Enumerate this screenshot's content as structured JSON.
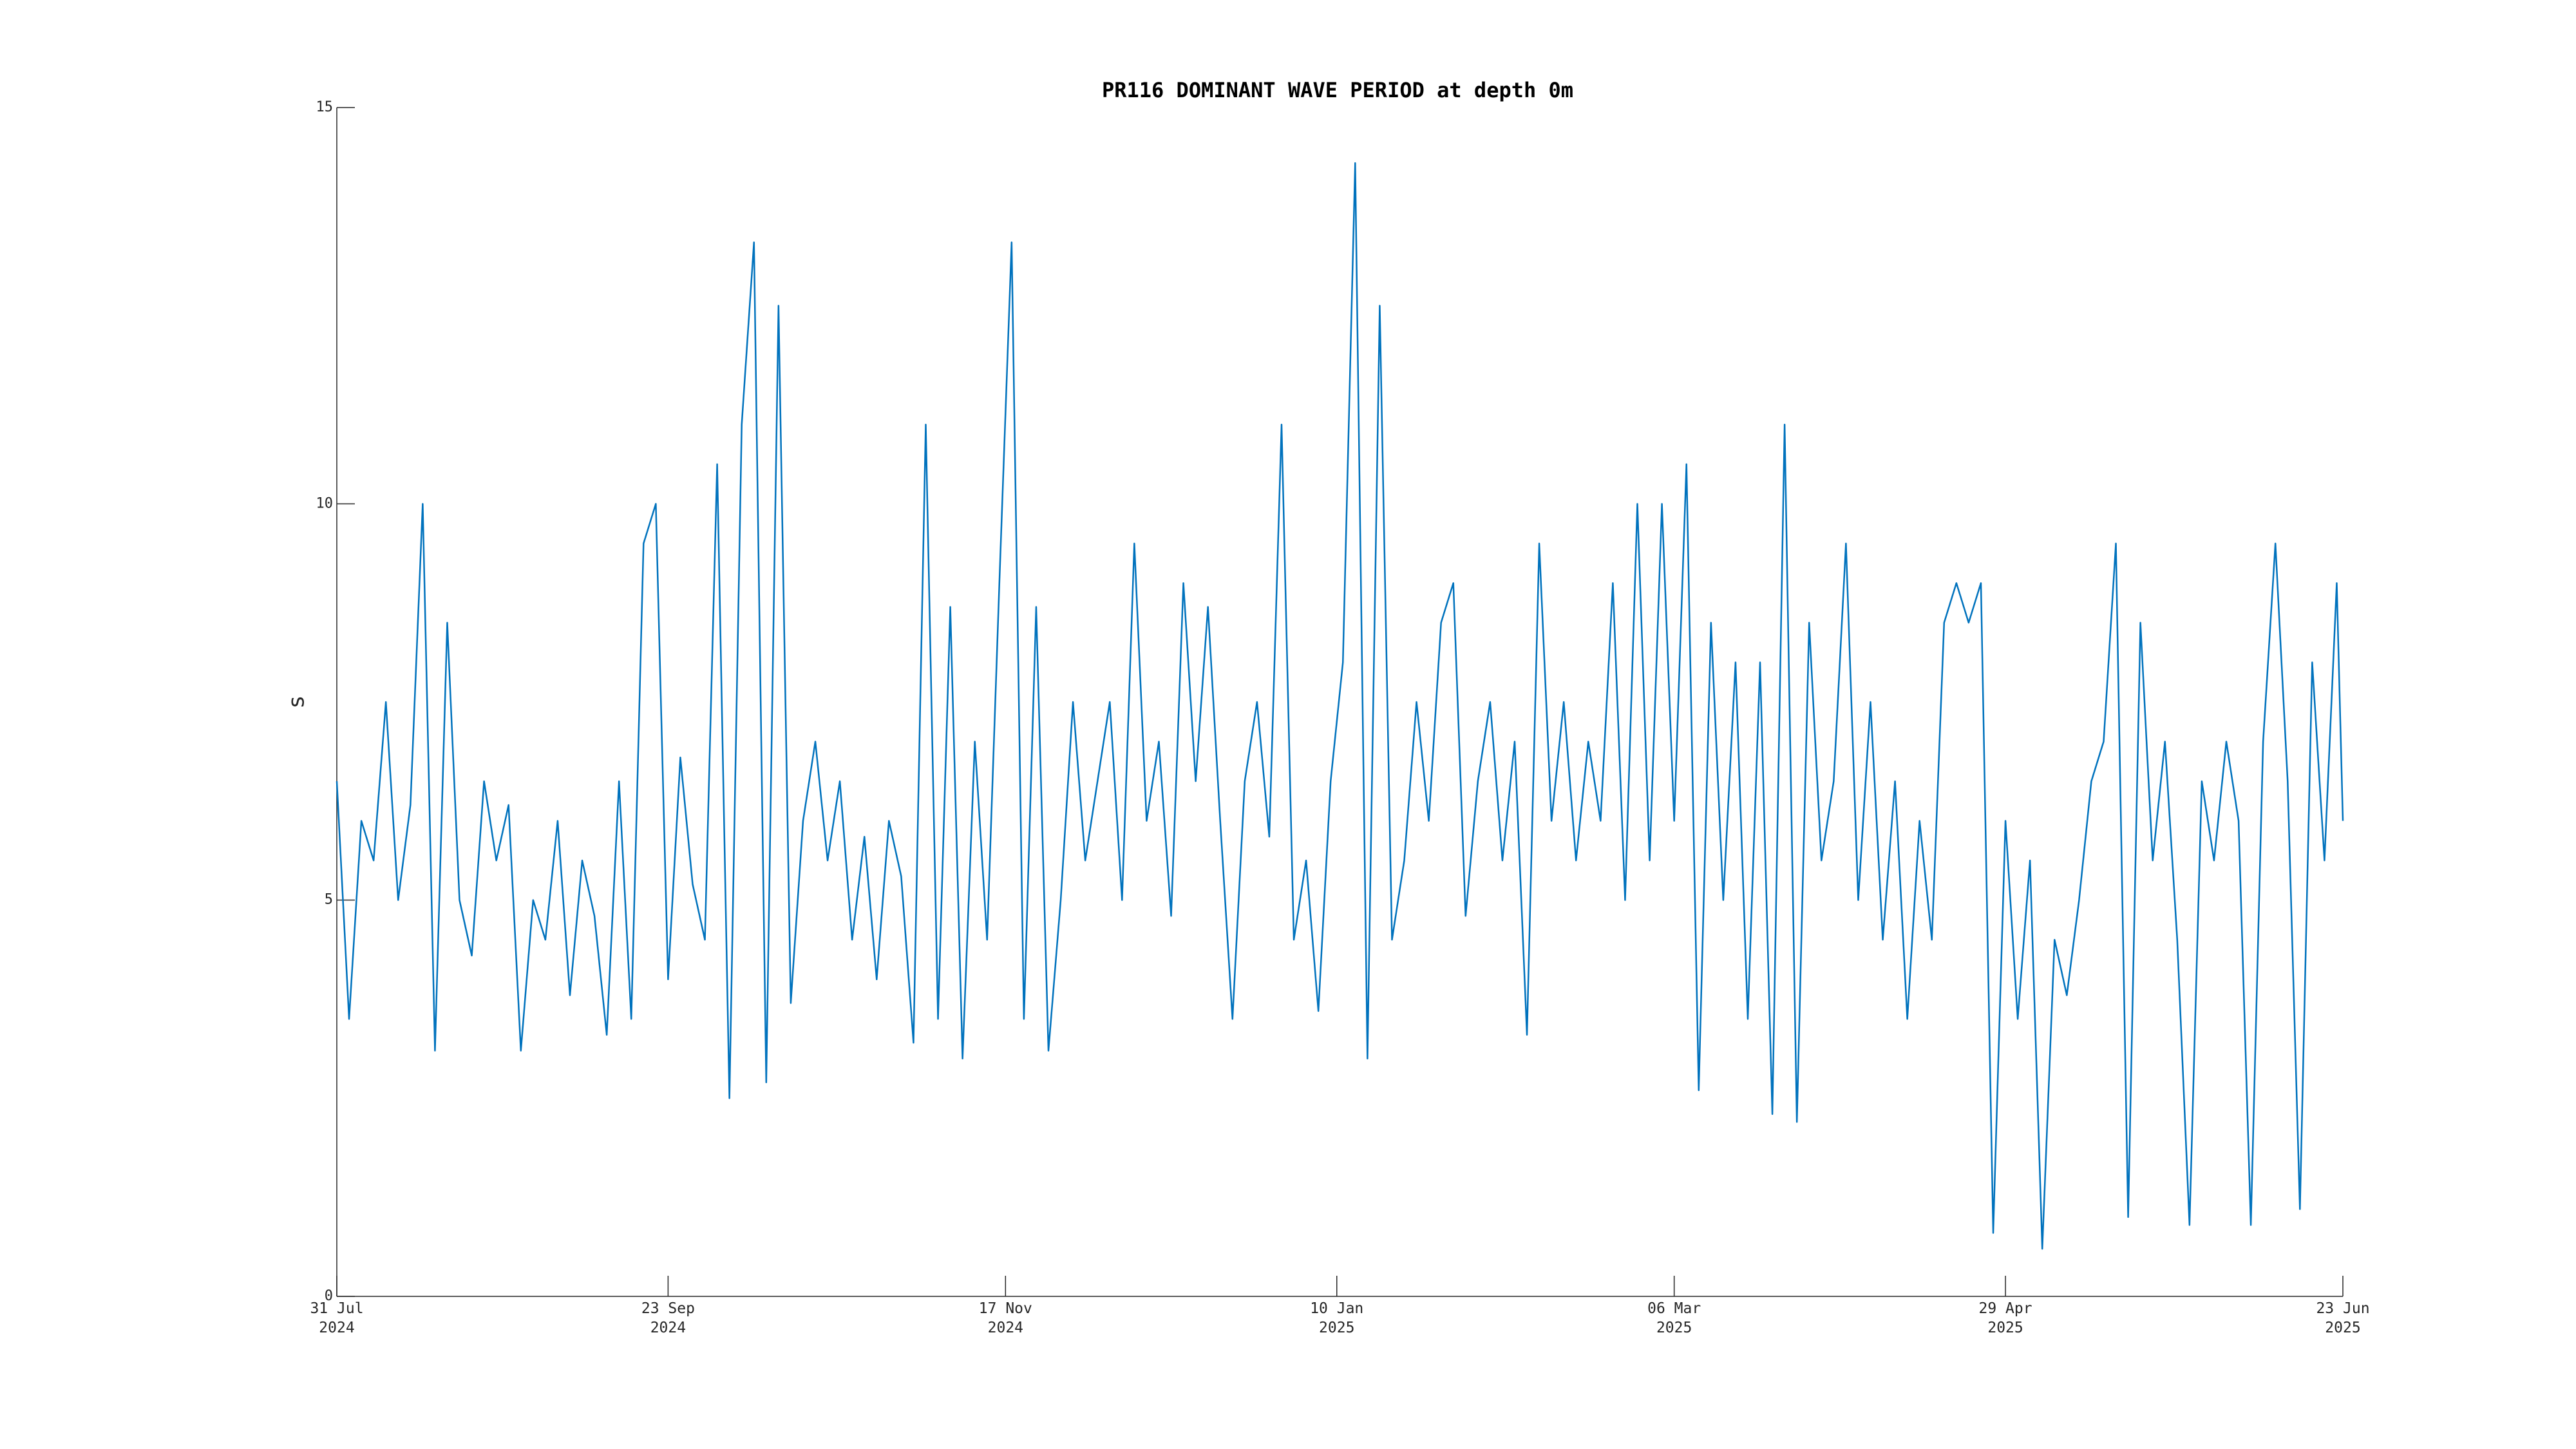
{
  "chart_data": {
    "type": "line",
    "title": "PR116 DOMINANT WAVE PERIOD at depth 0m",
    "ylabel": "s",
    "color": "#0072bd",
    "xlim": [
      "2024-07-31",
      "2025-06-23"
    ],
    "xticks": [
      {
        "value": "2024-07-31",
        "label": "31 Jul\n2024"
      },
      {
        "value": "2024-09-23",
        "label": "23 Sep\n2024"
      },
      {
        "value": "2024-11-17",
        "label": "17 Nov\n2024"
      },
      {
        "value": "2025-01-10",
        "label": "10 Jan\n2025"
      },
      {
        "value": "2025-03-06",
        "label": "06 Mar\n2025"
      },
      {
        "value": "2025-04-29",
        "label": "29 Apr\n2025"
      },
      {
        "value": "2025-06-23",
        "label": "23 Jun\n2025"
      }
    ],
    "ylim": [
      0,
      15
    ],
    "yticks": [
      0,
      5,
      10,
      15
    ],
    "x": [
      "2024-07-31",
      "2024-08-02",
      "2024-08-04",
      "2024-08-06",
      "2024-08-08",
      "2024-08-10",
      "2024-08-12",
      "2024-08-14",
      "2024-08-16",
      "2024-08-18",
      "2024-08-20",
      "2024-08-22",
      "2024-08-24",
      "2024-08-26",
      "2024-08-28",
      "2024-08-30",
      "2024-09-01",
      "2024-09-03",
      "2024-09-05",
      "2024-09-07",
      "2024-09-09",
      "2024-09-11",
      "2024-09-13",
      "2024-09-15",
      "2024-09-17",
      "2024-09-19",
      "2024-09-21",
      "2024-09-23",
      "2024-09-25",
      "2024-09-27",
      "2024-09-29",
      "2024-10-01",
      "2024-10-03",
      "2024-10-05",
      "2024-10-07",
      "2024-10-09",
      "2024-10-11",
      "2024-10-13",
      "2024-10-15",
      "2024-10-17",
      "2024-10-19",
      "2024-10-21",
      "2024-10-23",
      "2024-10-25",
      "2024-10-27",
      "2024-10-29",
      "2024-10-31",
      "2024-11-02",
      "2024-11-04",
      "2024-11-06",
      "2024-11-08",
      "2024-11-10",
      "2024-11-12",
      "2024-11-14",
      "2024-11-16",
      "2024-11-18",
      "2024-11-20",
      "2024-11-22",
      "2024-11-24",
      "2024-11-26",
      "2024-11-28",
      "2024-11-30",
      "2024-12-02",
      "2024-12-04",
      "2024-12-06",
      "2024-12-08",
      "2024-12-10",
      "2024-12-12",
      "2024-12-14",
      "2024-12-16",
      "2024-12-18",
      "2024-12-20",
      "2024-12-22",
      "2024-12-24",
      "2024-12-26",
      "2024-12-28",
      "2024-12-30",
      "2025-01-01",
      "2025-01-03",
      "2025-01-05",
      "2025-01-07",
      "2025-01-09",
      "2025-01-11",
      "2025-01-13",
      "2025-01-15",
      "2025-01-17",
      "2025-01-19",
      "2025-01-21",
      "2025-01-23",
      "2025-01-25",
      "2025-01-27",
      "2025-01-29",
      "2025-01-31",
      "2025-02-02",
      "2025-02-04",
      "2025-02-06",
      "2025-02-08",
      "2025-02-10",
      "2025-02-12",
      "2025-02-14",
      "2025-02-16",
      "2025-02-18",
      "2025-02-20",
      "2025-02-22",
      "2025-02-24",
      "2025-02-26",
      "2025-02-28",
      "2025-03-02",
      "2025-03-04",
      "2025-03-06",
      "2025-03-08",
      "2025-03-10",
      "2025-03-12",
      "2025-03-14",
      "2025-03-16",
      "2025-03-18",
      "2025-03-20",
      "2025-03-22",
      "2025-03-24",
      "2025-03-26",
      "2025-03-28",
      "2025-03-30",
      "2025-04-01",
      "2025-04-03",
      "2025-04-05",
      "2025-04-07",
      "2025-04-09",
      "2025-04-11",
      "2025-04-13",
      "2025-04-15",
      "2025-04-17",
      "2025-04-19",
      "2025-04-21",
      "2025-04-23",
      "2025-04-25",
      "2025-04-27",
      "2025-04-29",
      "2025-05-01",
      "2025-05-03",
      "2025-05-05",
      "2025-05-07",
      "2025-05-09",
      "2025-05-11",
      "2025-05-13",
      "2025-05-15",
      "2025-05-17",
      "2025-05-19",
      "2025-05-21",
      "2025-05-23",
      "2025-05-25",
      "2025-05-27",
      "2025-05-29",
      "2025-05-31",
      "2025-06-02",
      "2025-06-04",
      "2025-06-06",
      "2025-06-08",
      "2025-06-10",
      "2025-06-12",
      "2025-06-14",
      "2025-06-16",
      "2025-06-18",
      "2025-06-20",
      "2025-06-22",
      "2025-06-23"
    ],
    "values": [
      6.5,
      3.5,
      6.0,
      5.5,
      7.5,
      5.0,
      6.2,
      10.0,
      3.1,
      8.5,
      5.0,
      4.3,
      6.5,
      5.5,
      6.2,
      3.1,
      5.0,
      4.5,
      6.0,
      3.8,
      5.5,
      4.8,
      3.3,
      6.5,
      3.5,
      9.5,
      10.0,
      4.0,
      6.8,
      5.2,
      4.5,
      10.5,
      2.5,
      11.0,
      13.3,
      2.7,
      12.5,
      3.7,
      6.0,
      7.0,
      5.5,
      6.5,
      4.5,
      5.8,
      4.0,
      6.0,
      5.3,
      3.2,
      11.0,
      3.5,
      8.7,
      3.0,
      7.0,
      4.5,
      9.0,
      13.3,
      3.5,
      8.7,
      3.1,
      5.0,
      7.5,
      5.5,
      6.5,
      7.5,
      5.0,
      9.5,
      6.0,
      7.0,
      4.8,
      9.0,
      6.5,
      8.7,
      6.0,
      3.5,
      6.5,
      7.5,
      5.8,
      11.0,
      4.5,
      5.5,
      3.6,
      6.5,
      8.0,
      14.3,
      3.0,
      12.5,
      4.5,
      5.5,
      7.5,
      6.0,
      8.5,
      9.0,
      4.8,
      6.5,
      7.5,
      5.5,
      7.0,
      3.3,
      9.5,
      6.0,
      7.5,
      5.5,
      7.0,
      6.0,
      9.0,
      5.0,
      10.0,
      5.5,
      10.0,
      6.0,
      10.5,
      2.6,
      8.5,
      5.0,
      8.0,
      3.5,
      8.0,
      2.3,
      11.0,
      2.2,
      8.5,
      5.5,
      6.5,
      9.5,
      5.0,
      7.5,
      4.5,
      6.5,
      3.5,
      6.0,
      4.5,
      8.5,
      9.0,
      8.5,
      9.0,
      0.8,
      6.0,
      3.5,
      5.5,
      0.6,
      4.5,
      3.8,
      5.0,
      6.5,
      7.0,
      9.5,
      1.0,
      8.5,
      5.5,
      7.0,
      4.5,
      0.9,
      6.5,
      5.5,
      7.0,
      6.0,
      0.9,
      7.0,
      9.5,
      6.5,
      1.1,
      8.0,
      5.5,
      9.0,
      6.0
    ]
  }
}
